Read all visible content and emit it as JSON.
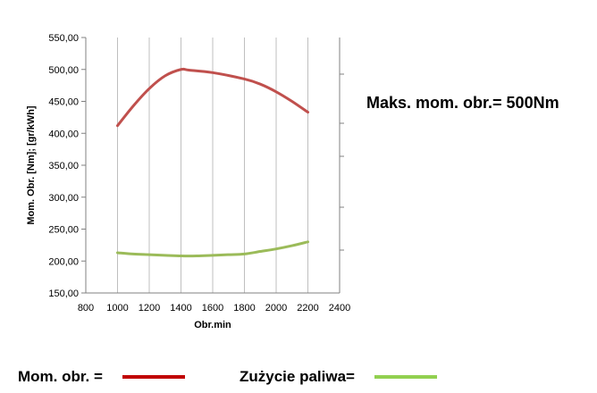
{
  "chart_data": {
    "type": "line",
    "title": "",
    "xlabel": "Obr.min",
    "ylabel": "Mom. Obr. [Nm]; [gr/kWh]",
    "xlim": [
      800,
      2400
    ],
    "ylim": [
      150,
      550
    ],
    "x_ticks": [
      "800",
      "1000",
      "1200",
      "1400",
      "1600",
      "1800",
      "2000",
      "2200",
      "2400"
    ],
    "y_ticks": [
      "150,00",
      "200,00",
      "250,00",
      "300,00",
      "350,00",
      "400,00",
      "450,00",
      "500,00",
      "550,00"
    ],
    "grid": "vertical",
    "series": [
      {
        "name": "Mom. obr. =",
        "color": "#c0504d",
        "x": [
          1000,
          1100,
          1200,
          1300,
          1400,
          1450,
          1600,
          1800,
          1900,
          2000,
          2100,
          2200
        ],
        "y": [
          412,
          443,
          470,
          490,
          500,
          499,
          495,
          485,
          477,
          465,
          450,
          433
        ]
      },
      {
        "name": "Zużycie paliwa=",
        "color": "#9bbb59",
        "x": [
          1000,
          1100,
          1200,
          1300,
          1400,
          1500,
          1600,
          1700,
          1800,
          1900,
          2000,
          2100,
          2200
        ],
        "y": [
          213,
          211,
          210,
          209,
          208,
          208,
          209,
          210,
          211,
          215,
          219,
          224,
          230
        ]
      }
    ]
  },
  "annotation": "Maks. mom. obr.= 500Nm",
  "legend": {
    "torque_label": "Mom. obr. =",
    "fuel_label": "Zużycie paliwa="
  },
  "colors": {
    "torque": "#c00000",
    "fuel": "#92d050",
    "grid": "#bfbfbf",
    "axis": "#808080"
  }
}
